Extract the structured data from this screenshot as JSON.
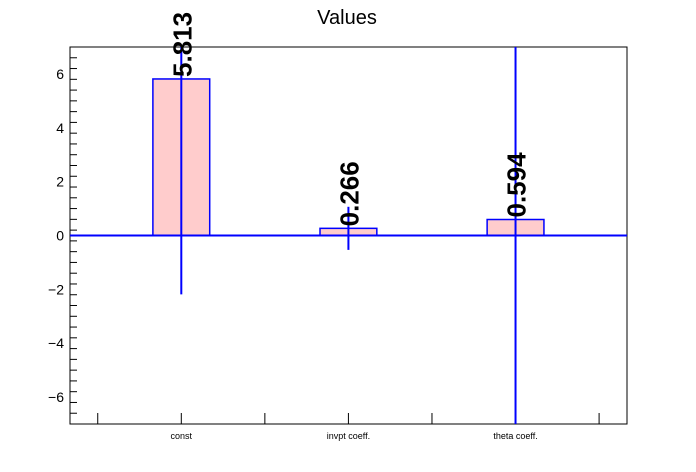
{
  "chart_data": {
    "type": "bar",
    "title": "Values",
    "categories": [
      "const",
      "invpt coeff.",
      "theta coeff."
    ],
    "values": [
      5.813,
      0.266,
      0.594
    ],
    "errors": [
      8.0,
      0.8,
      8.0
    ],
    "data_labels": [
      "5.813",
      "0.266",
      "0.594"
    ],
    "ylim": [
      -7,
      7
    ],
    "y_ticks": [
      -6,
      -4,
      -2,
      0,
      2,
      4,
      6
    ],
    "y_tick_labels": [
      "−6",
      "−4",
      "−2",
      "0",
      "2",
      "4",
      "6"
    ],
    "grid": false,
    "bar_fill": "#ffcccc",
    "bar_stroke": "#0000ff",
    "error_color": "#0000ff",
    "zero_line_color": "#0000ff"
  }
}
